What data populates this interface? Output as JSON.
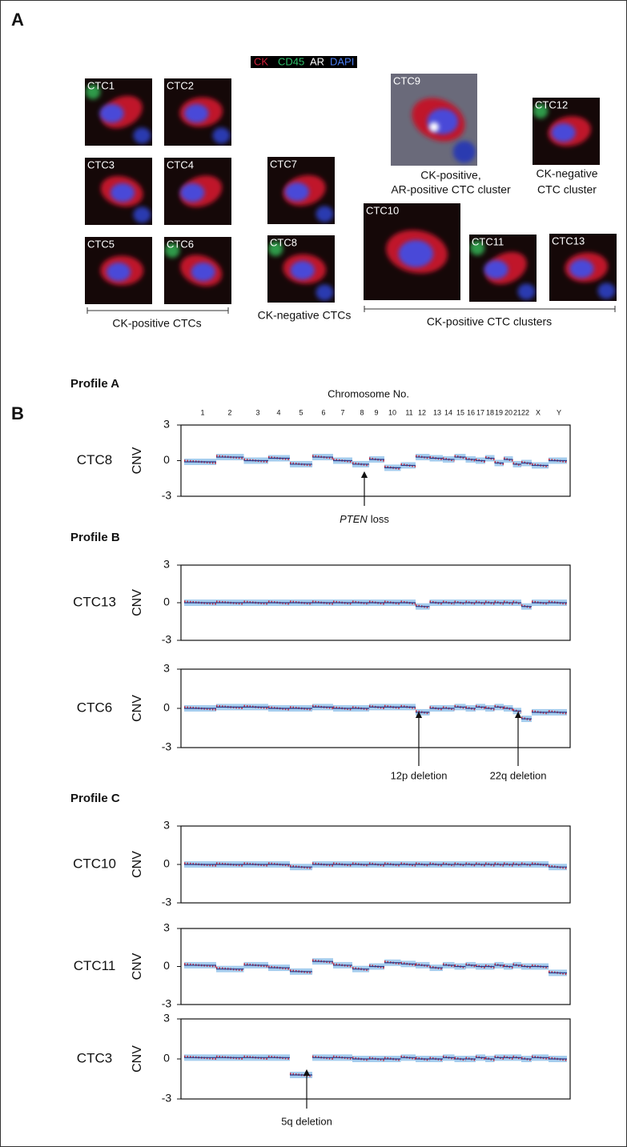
{
  "panel_a": {
    "label": "A",
    "legend": [
      "CK",
      "CD45",
      "AR",
      "DAPI"
    ],
    "cells": [
      "CTC1",
      "CTC2",
      "CTC3",
      "CTC4",
      "CTC5",
      "CTC6",
      "CTC7",
      "CTC8",
      "CTC9",
      "CTC12",
      "CTC10",
      "CTC11",
      "CTC13"
    ],
    "captions": [
      "CK-positive CTCs",
      "CK-negative CTCs",
      "CK-positive,",
      "AR-positive CTC cluster",
      "CK-negative",
      "CTC cluster",
      "CK-positive CTC clusters"
    ]
  },
  "panel_b": {
    "label": "B",
    "chromosome_axis_title": "Chromosome No.",
    "chromosomes": [
      "1",
      "2",
      "3",
      "4",
      "5",
      "6",
      "7",
      "8",
      "9",
      "10",
      "11",
      "12",
      "13",
      "14",
      "15",
      "16",
      "17",
      "18",
      "19",
      "20",
      "21",
      "22",
      "X",
      "Y"
    ],
    "profiles": [
      {
        "title": "Profile A",
        "plots": [
          {
            "cell": "CTC8",
            "ylabel": "CNV",
            "ylim": [
              -3,
              3
            ],
            "yticks": [
              3,
              0,
              -3
            ],
            "values": [
              -0.1,
              0.3,
              0.0,
              0.2,
              -0.3,
              0.3,
              0.0,
              -0.3,
              0.1,
              -0.6,
              -0.4,
              0.3,
              0.2,
              0.1,
              0.3,
              0.1,
              0.0,
              0.2,
              -0.2,
              0.1,
              -0.3,
              -0.2,
              -0.4,
              0.0
            ],
            "annotations": [
              {
                "gene": "PTEN",
                "text": "loss"
              }
            ]
          }
        ]
      },
      {
        "title": "Profile B",
        "plots": [
          {
            "cell": "CTC13",
            "ylabel": "CNV",
            "ylim": [
              -3,
              3
            ],
            "yticks": [
              3,
              0,
              -3
            ],
            "values": [
              0,
              0,
              0,
              0,
              0,
              0,
              0,
              0,
              0,
              0,
              0,
              -0.3,
              0,
              0,
              0,
              0,
              0,
              0,
              0,
              0,
              0,
              -0.3,
              0,
              0
            ],
            "annotations": []
          },
          {
            "cell": "CTC6",
            "ylabel": "CNV",
            "ylim": [
              -3,
              3
            ],
            "yticks": [
              3,
              0,
              -3
            ],
            "values": [
              0,
              0.1,
              0.1,
              0,
              0,
              0.1,
              0,
              0,
              0.1,
              0.1,
              0.1,
              -0.3,
              0,
              0,
              0.1,
              0,
              0.1,
              0,
              0.1,
              0,
              -0.2,
              -0.8,
              -0.3,
              -0.3
            ],
            "annotations": [
              {
                "text": "12p deletion"
              },
              {
                "text": "22q deletion"
              }
            ]
          }
        ]
      },
      {
        "title": "Profile C",
        "plots": [
          {
            "cell": "CTC10",
            "ylabel": "CNV",
            "ylim": [
              -3,
              3
            ],
            "yticks": [
              3,
              0,
              -3
            ],
            "values": [
              0,
              0,
              0,
              0,
              -0.2,
              0,
              0,
              0,
              0,
              0,
              0,
              0,
              0,
              0,
              0,
              0,
              0,
              0,
              0,
              0,
              0,
              0,
              0,
              -0.2
            ],
            "annotations": []
          },
          {
            "cell": "CTC11",
            "ylabel": "CNV",
            "ylim": [
              -3,
              3
            ],
            "yticks": [
              3,
              0,
              -3
            ],
            "values": [
              0.1,
              -0.2,
              0.1,
              -0.1,
              -0.4,
              0.4,
              0.1,
              -0.2,
              0.0,
              0.3,
              0.2,
              0.1,
              -0.1,
              0.1,
              0.0,
              0.1,
              0.0,
              0.0,
              0.1,
              0.0,
              0.1,
              0.0,
              0.0,
              -0.5
            ],
            "annotations": []
          },
          {
            "cell": "CTC3",
            "ylabel": "CNV",
            "ylim": [
              -3,
              3
            ],
            "yticks": [
              3,
              0,
              -3
            ],
            "values": [
              0.1,
              0.1,
              0.1,
              0.1,
              -1.2,
              0.1,
              0.1,
              0.0,
              0.0,
              0.0,
              0.1,
              0.0,
              0.0,
              0.1,
              0.0,
              0.0,
              0.1,
              0.0,
              0.1,
              0.1,
              0.1,
              0.0,
              0.1,
              0.0
            ],
            "annotations": [
              {
                "text": "5q deletion"
              }
            ]
          }
        ]
      }
    ]
  }
}
